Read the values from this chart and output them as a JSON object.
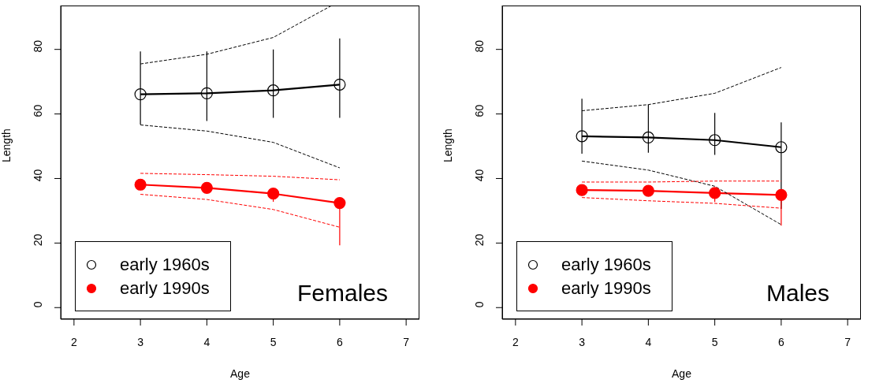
{
  "chart_data": [
    {
      "type": "line",
      "xlabel": "Age",
      "ylabel": "Length",
      "annotations": [
        "Females"
      ],
      "x": [
        3,
        4,
        5,
        6
      ],
      "xlim": [
        1.8,
        7.2
      ],
      "xticks": [
        2,
        3,
        4,
        5,
        6,
        7
      ],
      "ylim": [
        -3.6,
        93.6
      ],
      "yticks": [
        0,
        20,
        40,
        60,
        80
      ],
      "legend": "bottom left",
      "marker": "circle",
      "line_style": "solid",
      "series": [
        {
          "name": "early 1960s",
          "color": "#000000",
          "values": [
            66.1,
            66.4,
            67.3,
            69.1
          ],
          "errors": [
            [
              56.7,
              79.4
            ],
            [
              57.8,
              79.4
            ],
            [
              58.8,
              80
            ],
            [
              58.8,
              83.4
            ]
          ]
        },
        {
          "name": "early 1990s",
          "color": "#ff0000",
          "values": [
            38.1,
            37.1,
            35.3,
            32.4
          ],
          "errors": [
            null,
            null,
            [
              32.8,
              35.3
            ],
            [
              19.3,
              32.4
            ]
          ]
        },
        {
          "color": "#000000",
          "line_style": "dashed",
          "marker": "none",
          "x": [
            3,
            4,
            5,
            5.88
          ],
          "values": [
            75.5,
            78.5,
            83.7,
            93.6
          ]
        },
        {
          "color": "#000000",
          "line_style": "dashed",
          "marker": "none",
          "values": [
            56.6,
            54.7,
            51.2,
            43.3
          ]
        },
        {
          "color": "#ff0000",
          "line_style": "dashed",
          "marker": "none",
          "values": [
            41.6,
            41.2,
            40.7,
            39.6
          ]
        },
        {
          "color": "#ff0000",
          "line_style": "dashed",
          "marker": "none",
          "values": [
            35.1,
            33.5,
            30.4,
            24.9
          ]
        }
      ]
    },
    {
      "type": "line",
      "xlabel": "Age",
      "ylabel": "Length",
      "annotations": [
        "Males"
      ],
      "x": [
        3,
        4,
        5,
        6
      ],
      "xlim": [
        1.8,
        7.2
      ],
      "xticks": [
        2,
        3,
        4,
        5,
        6,
        7
      ],
      "ylim": [
        -3.6,
        93.6
      ],
      "yticks": [
        0,
        20,
        40,
        60,
        80
      ],
      "legend": "bottom left",
      "marker": "circle",
      "line_style": "solid",
      "series": [
        {
          "name": "early 1960s",
          "color": "#000000",
          "values": [
            53.1,
            52.7,
            51.9,
            49.7
          ],
          "errors": [
            [
              47.7,
              64.7
            ],
            [
              48.0,
              62.9
            ],
            [
              47.3,
              60.3
            ],
            [
              30.6,
              57.4
            ]
          ]
        },
        {
          "name": "early 1990s",
          "color": "#ff0000",
          "values": [
            36.4,
            36.2,
            35.5,
            34.9
          ],
          "errors": [
            null,
            null,
            [
              32.7,
              35.5
            ],
            [
              25.4,
              34.9
            ]
          ]
        },
        {
          "color": "#000000",
          "line_style": "dashed",
          "marker": "none",
          "values": [
            61.0,
            62.9,
            66.4,
            74.4
          ]
        },
        {
          "color": "#000000",
          "line_style": "dashed",
          "marker": "none",
          "values": [
            45.4,
            42.6,
            37.6,
            25.7
          ]
        },
        {
          "color": "#ff0000",
          "line_style": "dashed",
          "marker": "none",
          "values": [
            38.9,
            38.9,
            39.2,
            39.2
          ]
        },
        {
          "color": "#ff0000",
          "line_style": "dashed",
          "marker": "none",
          "values": [
            34.1,
            33.1,
            32.3,
            30.8
          ]
        }
      ]
    }
  ]
}
